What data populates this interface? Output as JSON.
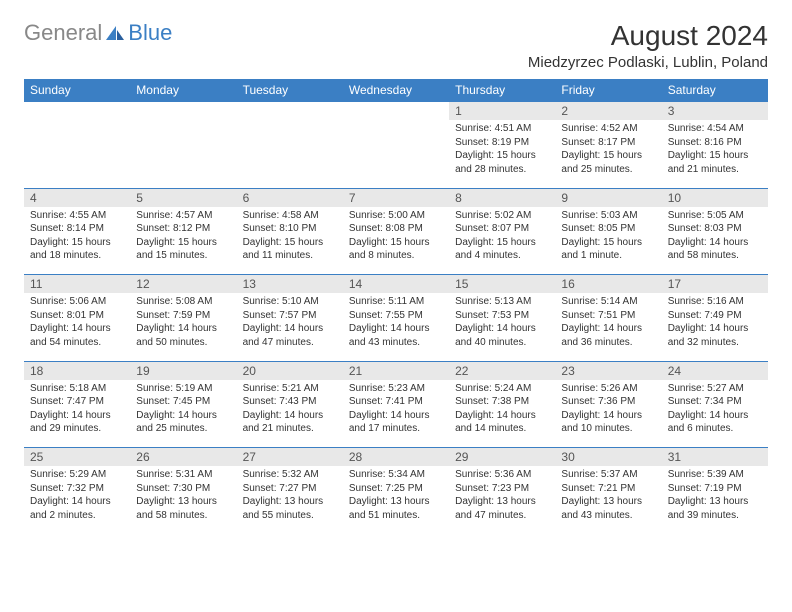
{
  "logo": {
    "text1": "General",
    "text2": "Blue"
  },
  "title": "August 2024",
  "location": "Miedzyrzec Podlaski, Lublin, Poland",
  "colors": {
    "header_bg": "#3b7fc4",
    "header_fg": "#ffffff",
    "daynum_bg": "#e8e8e8",
    "border": "#3b7fc4"
  },
  "weekdays": [
    "Sunday",
    "Monday",
    "Tuesday",
    "Wednesday",
    "Thursday",
    "Friday",
    "Saturday"
  ],
  "weeks": [
    [
      null,
      null,
      null,
      null,
      {
        "n": "1",
        "sr": "Sunrise: 4:51 AM",
        "ss": "Sunset: 8:19 PM",
        "d1": "Daylight: 15 hours",
        "d2": "and 28 minutes."
      },
      {
        "n": "2",
        "sr": "Sunrise: 4:52 AM",
        "ss": "Sunset: 8:17 PM",
        "d1": "Daylight: 15 hours",
        "d2": "and 25 minutes."
      },
      {
        "n": "3",
        "sr": "Sunrise: 4:54 AM",
        "ss": "Sunset: 8:16 PM",
        "d1": "Daylight: 15 hours",
        "d2": "and 21 minutes."
      }
    ],
    [
      {
        "n": "4",
        "sr": "Sunrise: 4:55 AM",
        "ss": "Sunset: 8:14 PM",
        "d1": "Daylight: 15 hours",
        "d2": "and 18 minutes."
      },
      {
        "n": "5",
        "sr": "Sunrise: 4:57 AM",
        "ss": "Sunset: 8:12 PM",
        "d1": "Daylight: 15 hours",
        "d2": "and 15 minutes."
      },
      {
        "n": "6",
        "sr": "Sunrise: 4:58 AM",
        "ss": "Sunset: 8:10 PM",
        "d1": "Daylight: 15 hours",
        "d2": "and 11 minutes."
      },
      {
        "n": "7",
        "sr": "Sunrise: 5:00 AM",
        "ss": "Sunset: 8:08 PM",
        "d1": "Daylight: 15 hours",
        "d2": "and 8 minutes."
      },
      {
        "n": "8",
        "sr": "Sunrise: 5:02 AM",
        "ss": "Sunset: 8:07 PM",
        "d1": "Daylight: 15 hours",
        "d2": "and 4 minutes."
      },
      {
        "n": "9",
        "sr": "Sunrise: 5:03 AM",
        "ss": "Sunset: 8:05 PM",
        "d1": "Daylight: 15 hours",
        "d2": "and 1 minute."
      },
      {
        "n": "10",
        "sr": "Sunrise: 5:05 AM",
        "ss": "Sunset: 8:03 PM",
        "d1": "Daylight: 14 hours",
        "d2": "and 58 minutes."
      }
    ],
    [
      {
        "n": "11",
        "sr": "Sunrise: 5:06 AM",
        "ss": "Sunset: 8:01 PM",
        "d1": "Daylight: 14 hours",
        "d2": "and 54 minutes."
      },
      {
        "n": "12",
        "sr": "Sunrise: 5:08 AM",
        "ss": "Sunset: 7:59 PM",
        "d1": "Daylight: 14 hours",
        "d2": "and 50 minutes."
      },
      {
        "n": "13",
        "sr": "Sunrise: 5:10 AM",
        "ss": "Sunset: 7:57 PM",
        "d1": "Daylight: 14 hours",
        "d2": "and 47 minutes."
      },
      {
        "n": "14",
        "sr": "Sunrise: 5:11 AM",
        "ss": "Sunset: 7:55 PM",
        "d1": "Daylight: 14 hours",
        "d2": "and 43 minutes."
      },
      {
        "n": "15",
        "sr": "Sunrise: 5:13 AM",
        "ss": "Sunset: 7:53 PM",
        "d1": "Daylight: 14 hours",
        "d2": "and 40 minutes."
      },
      {
        "n": "16",
        "sr": "Sunrise: 5:14 AM",
        "ss": "Sunset: 7:51 PM",
        "d1": "Daylight: 14 hours",
        "d2": "and 36 minutes."
      },
      {
        "n": "17",
        "sr": "Sunrise: 5:16 AM",
        "ss": "Sunset: 7:49 PM",
        "d1": "Daylight: 14 hours",
        "d2": "and 32 minutes."
      }
    ],
    [
      {
        "n": "18",
        "sr": "Sunrise: 5:18 AM",
        "ss": "Sunset: 7:47 PM",
        "d1": "Daylight: 14 hours",
        "d2": "and 29 minutes."
      },
      {
        "n": "19",
        "sr": "Sunrise: 5:19 AM",
        "ss": "Sunset: 7:45 PM",
        "d1": "Daylight: 14 hours",
        "d2": "and 25 minutes."
      },
      {
        "n": "20",
        "sr": "Sunrise: 5:21 AM",
        "ss": "Sunset: 7:43 PM",
        "d1": "Daylight: 14 hours",
        "d2": "and 21 minutes."
      },
      {
        "n": "21",
        "sr": "Sunrise: 5:23 AM",
        "ss": "Sunset: 7:41 PM",
        "d1": "Daylight: 14 hours",
        "d2": "and 17 minutes."
      },
      {
        "n": "22",
        "sr": "Sunrise: 5:24 AM",
        "ss": "Sunset: 7:38 PM",
        "d1": "Daylight: 14 hours",
        "d2": "and 14 minutes."
      },
      {
        "n": "23",
        "sr": "Sunrise: 5:26 AM",
        "ss": "Sunset: 7:36 PM",
        "d1": "Daylight: 14 hours",
        "d2": "and 10 minutes."
      },
      {
        "n": "24",
        "sr": "Sunrise: 5:27 AM",
        "ss": "Sunset: 7:34 PM",
        "d1": "Daylight: 14 hours",
        "d2": "and 6 minutes."
      }
    ],
    [
      {
        "n": "25",
        "sr": "Sunrise: 5:29 AM",
        "ss": "Sunset: 7:32 PM",
        "d1": "Daylight: 14 hours",
        "d2": "and 2 minutes."
      },
      {
        "n": "26",
        "sr": "Sunrise: 5:31 AM",
        "ss": "Sunset: 7:30 PM",
        "d1": "Daylight: 13 hours",
        "d2": "and 58 minutes."
      },
      {
        "n": "27",
        "sr": "Sunrise: 5:32 AM",
        "ss": "Sunset: 7:27 PM",
        "d1": "Daylight: 13 hours",
        "d2": "and 55 minutes."
      },
      {
        "n": "28",
        "sr": "Sunrise: 5:34 AM",
        "ss": "Sunset: 7:25 PM",
        "d1": "Daylight: 13 hours",
        "d2": "and 51 minutes."
      },
      {
        "n": "29",
        "sr": "Sunrise: 5:36 AM",
        "ss": "Sunset: 7:23 PM",
        "d1": "Daylight: 13 hours",
        "d2": "and 47 minutes."
      },
      {
        "n": "30",
        "sr": "Sunrise: 5:37 AM",
        "ss": "Sunset: 7:21 PM",
        "d1": "Daylight: 13 hours",
        "d2": "and 43 minutes."
      },
      {
        "n": "31",
        "sr": "Sunrise: 5:39 AM",
        "ss": "Sunset: 7:19 PM",
        "d1": "Daylight: 13 hours",
        "d2": "and 39 minutes."
      }
    ]
  ]
}
